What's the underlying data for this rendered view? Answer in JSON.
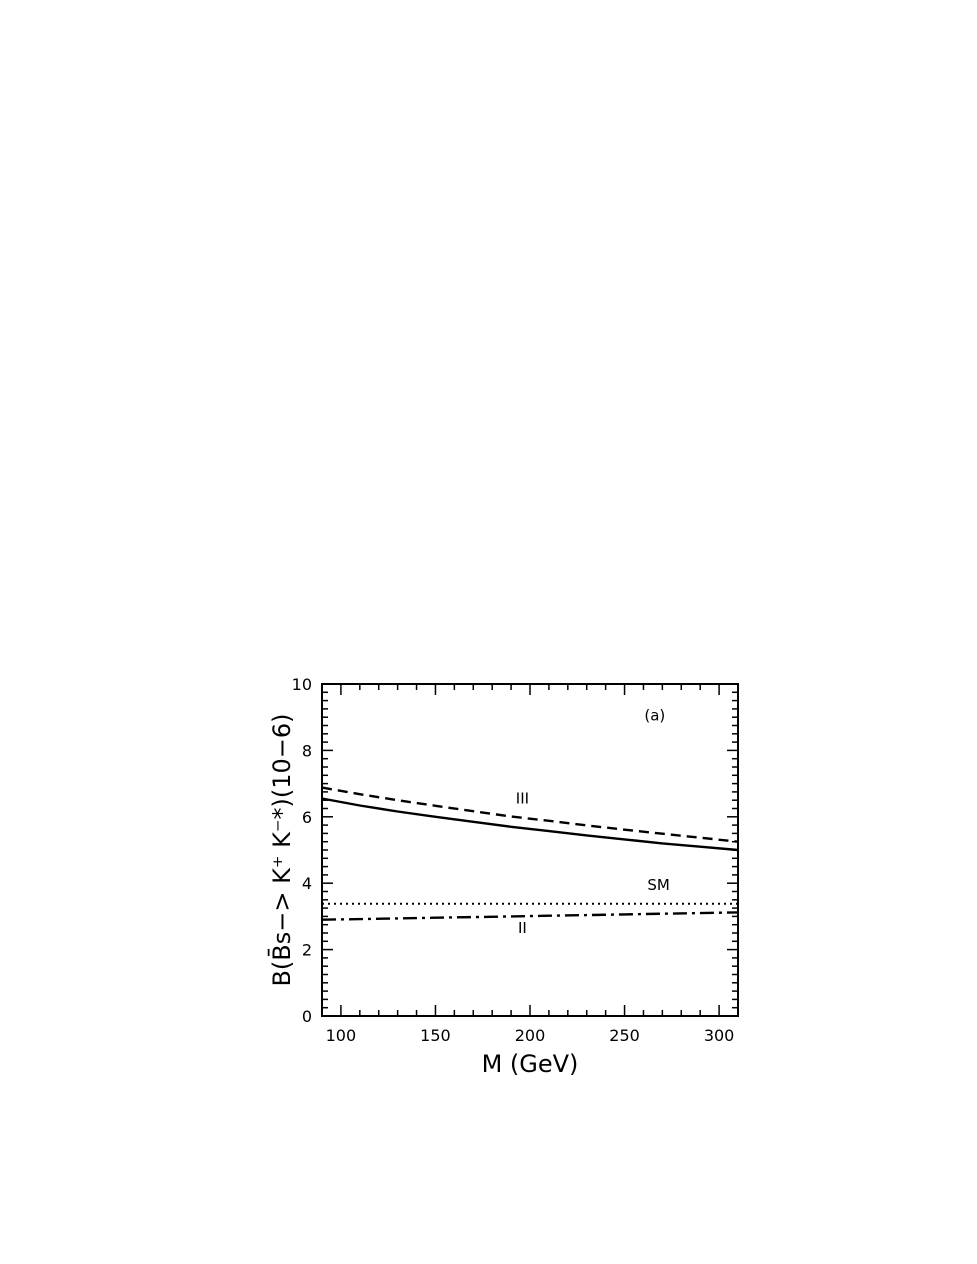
{
  "chart_data": {
    "type": "line",
    "title": "",
    "panel_label": "(a)",
    "xlabel": "M (GeV)",
    "ylabel": "B(B̄s−> K⁺ K⁻*)(10−6)",
    "xlim": [
      90,
      310
    ],
    "ylim": [
      0,
      10
    ],
    "x_ticks": [
      100,
      150,
      200,
      250,
      300
    ],
    "y_ticks": [
      0,
      2,
      4,
      6,
      8,
      10
    ],
    "grid": false,
    "legend": "none",
    "x": [
      90,
      110,
      130,
      150,
      170,
      190,
      210,
      230,
      250,
      270,
      290,
      310
    ],
    "series": [
      {
        "name": "III",
        "style": "dashed",
        "values": [
          6.88,
          6.68,
          6.5,
          6.33,
          6.17,
          6.01,
          5.88,
          5.74,
          5.61,
          5.49,
          5.37,
          5.25
        ]
      },
      {
        "name": "",
        "style": "solid",
        "values": [
          6.55,
          6.34,
          6.16,
          6.0,
          5.85,
          5.7,
          5.57,
          5.44,
          5.32,
          5.2,
          5.1,
          5.0
        ]
      },
      {
        "name": "SM",
        "style": "dotted",
        "values": [
          3.38,
          3.38,
          3.38,
          3.38,
          3.38,
          3.38,
          3.38,
          3.38,
          3.38,
          3.38,
          3.38,
          3.38
        ]
      },
      {
        "name": "II",
        "style": "dashdot",
        "values": [
          2.9,
          2.92,
          2.94,
          2.96,
          2.98,
          3.0,
          3.02,
          3.04,
          3.06,
          3.08,
          3.1,
          3.12
        ]
      }
    ],
    "annotations": [
      {
        "text": "III",
        "x": 196,
        "y": 6.4
      },
      {
        "text": "SM",
        "x": 268,
        "y": 3.8
      },
      {
        "text": "II",
        "x": 196,
        "y": 2.5
      }
    ]
  }
}
